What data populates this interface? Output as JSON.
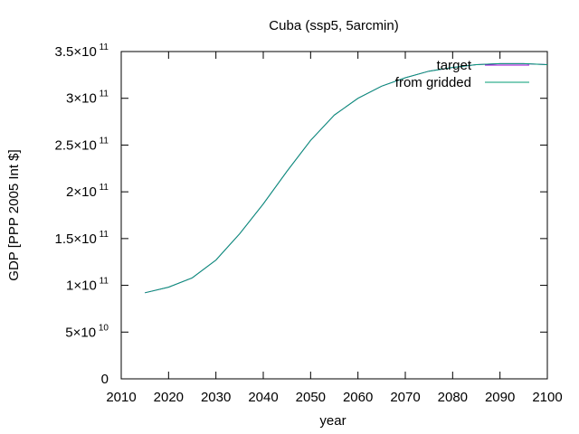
{
  "chart_data": {
    "type": "line",
    "title": "Cuba (ssp5, 5arcmin)",
    "xlabel": "year",
    "ylabel": "GDP [PPP 2005 Int $]",
    "xlim": [
      2010,
      2100
    ],
    "ylim": [
      0,
      350000000000
    ],
    "x_ticks": [
      "2010",
      "2020",
      "2030",
      "2040",
      "2050",
      "2060",
      "2070",
      "2080",
      "2090",
      "2100"
    ],
    "y_ticks": [
      {
        "value": 0,
        "mantissa": "0",
        "exp": ""
      },
      {
        "value": 50000000000,
        "mantissa": "5×10",
        "exp": "10"
      },
      {
        "value": 100000000000,
        "mantissa": "1×10",
        "exp": "11"
      },
      {
        "value": 150000000000,
        "mantissa": "1.5×10",
        "exp": "11"
      },
      {
        "value": 200000000000,
        "mantissa": "2×10",
        "exp": "11"
      },
      {
        "value": 250000000000,
        "mantissa": "2.5×10",
        "exp": "11"
      },
      {
        "value": 300000000000,
        "mantissa": "3×10",
        "exp": "11"
      },
      {
        "value": 350000000000,
        "mantissa": "3.5×10",
        "exp": "11"
      }
    ],
    "legend_position": "top-right",
    "grid": false,
    "series": [
      {
        "name": "target",
        "color": "#9400d3",
        "x": [
          2015,
          2020,
          2025,
          2030,
          2035,
          2040,
          2045,
          2050,
          2055,
          2060,
          2065,
          2070,
          2075,
          2080,
          2085,
          2090,
          2095,
          2100
        ],
        "y": [
          92000000000,
          98000000000,
          108000000000,
          127000000000,
          155000000000,
          187000000000,
          222000000000,
          255000000000,
          282000000000,
          300000000000,
          313000000000,
          322000000000,
          329000000000,
          333000000000,
          336000000000,
          337000000000,
          337000000000,
          336000000000
        ]
      },
      {
        "name": "from gridded",
        "color": "#009e73",
        "x": [
          2015,
          2020,
          2025,
          2030,
          2035,
          2040,
          2045,
          2050,
          2055,
          2060,
          2065,
          2070,
          2075,
          2080,
          2085,
          2090,
          2095,
          2100
        ],
        "y": [
          92000000000,
          98000000000,
          108000000000,
          127000000000,
          155000000000,
          187000000000,
          222000000000,
          255000000000,
          282000000000,
          300000000000,
          313000000000,
          322000000000,
          329000000000,
          333000000000,
          336000000000,
          337000000000,
          337000000000,
          336000000000
        ]
      }
    ]
  }
}
